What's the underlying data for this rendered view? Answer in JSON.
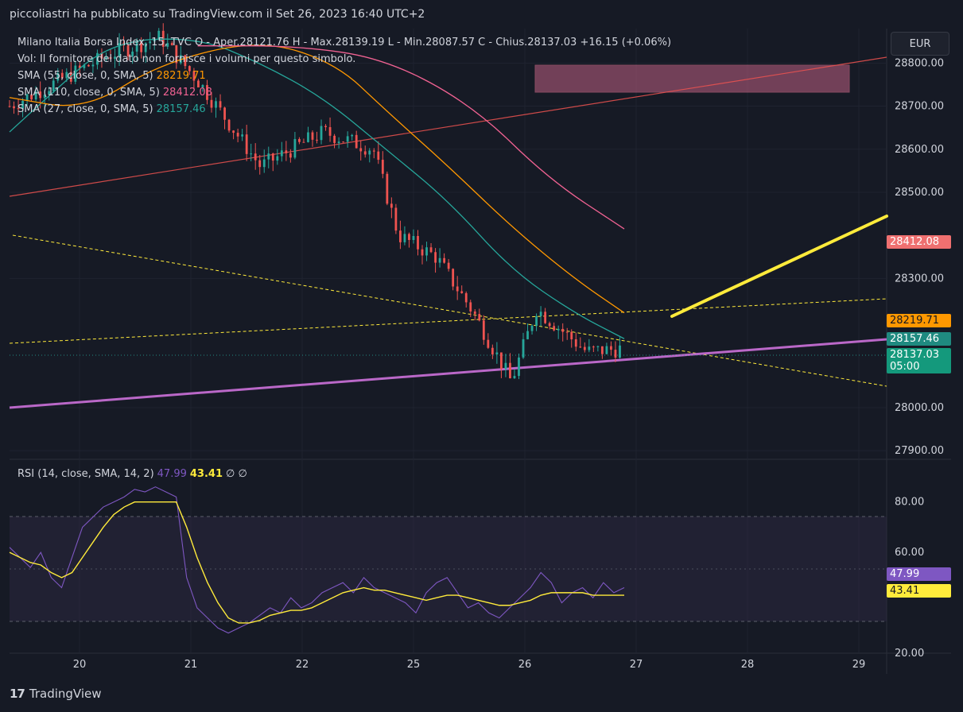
{
  "header": {
    "published": "piccoliastri ha pubblicato su TradingView.com il Set 26, 2023 16:40 UTC+2"
  },
  "currency": "EUR",
  "legend": {
    "symbol_line": "Milano Italia Borsa Index, 15, TVC  O - Aper.28121.76  H - Max.28139.19  L - Min.28087.57  C - Chius.28137.03  +16.15 (+0.06%)",
    "vol_line": "Vol: Il fornitore del dato non fornisce i volumi per questo simbolo.",
    "sma55_label": "SMA (55, close, 0, SMA, 5)",
    "sma55_value": "28219.71",
    "sma110_label": "SMA (110, close, 0, SMA, 5)",
    "sma110_value": "28412.08",
    "sma27_label": "SMA (27, close, 0, SMA, 5)",
    "sma27_value": "28157.46",
    "rsi_label": "RSI (14, close, SMA, 14, 2)",
    "rsi_value": "47.99",
    "rsi_ma_value": "43.41",
    "rsi_extra": "∅  ∅"
  },
  "colors": {
    "background": "#161a25",
    "up": "#26a69a",
    "down": "#ef5350",
    "sma55": "#ff9800",
    "sma110": "#f06292",
    "sma27": "#26a69a",
    "rsi": "#7e57c2",
    "rsi_ma": "#ffeb3b",
    "trend_purple": "#ba68c8",
    "trend_yellow": "#ffeb3b",
    "zone": "#b05a7a"
  },
  "badges": {
    "sma110": "28412.08",
    "sma55": "28219.71",
    "sma27": "28157.46",
    "price": "28137.03",
    "countdown": "05:00",
    "rsi": "47.99",
    "rsi_ma": "43.41"
  },
  "footer": {
    "brand": "TradingView",
    "logo": "17"
  },
  "chart_data": [
    {
      "type": "candlestick",
      "ylim": [
        27880,
        28880
      ],
      "y_ticks": [
        "28800.00",
        "28700.00",
        "28600.00",
        "28500.00",
        "28300.00",
        "28000.00",
        "27900.00"
      ],
      "x_ticks": [
        "20",
        "21",
        "22",
        "25",
        "26",
        "27",
        "28",
        "29"
      ],
      "series": [
        {
          "name": "SMA (27, close, 0, SMA, 5)",
          "values_path": [
            [
              0.0,
              28640
            ],
            [
              0.3,
              28720
            ],
            [
              0.8,
              28850
            ],
            [
              1.5,
              28860
            ],
            [
              2.0,
              28800
            ],
            [
              2.5,
              28720
            ],
            [
              3.0,
              28600
            ],
            [
              3.5,
              28480
            ],
            [
              4.0,
              28320
            ],
            [
              4.5,
              28220
            ],
            [
              4.9,
              28160
            ]
          ]
        },
        {
          "name": "SMA (55, close, 0, SMA, 5)",
          "values_path": [
            [
              0.0,
              28720
            ],
            [
              0.6,
              28690
            ],
            [
              1.2,
              28800
            ],
            [
              2.0,
              28855
            ],
            [
              2.6,
              28800
            ],
            [
              3.0,
              28690
            ],
            [
              3.5,
              28560
            ],
            [
              4.0,
              28420
            ],
            [
              4.5,
              28300
            ],
            [
              4.9,
              28220
            ]
          ]
        },
        {
          "name": "SMA (110, close, 0, SMA, 5)",
          "values_path": [
            [
              1.5,
              28840
            ],
            [
              2.3,
              28840
            ],
            [
              3.0,
              28810
            ],
            [
              3.7,
              28700
            ],
            [
              4.3,
              28530
            ],
            [
              4.9,
              28415
            ]
          ]
        }
      ]
    },
    {
      "type": "line",
      "ylim": [
        20,
        90
      ],
      "y_ticks": [
        "80.00",
        "60.00",
        "20.00"
      ],
      "bands": [
        30,
        70
      ],
      "series": [
        {
          "name": "RSI",
          "values": [
            62,
            58,
            54,
            60,
            50,
            46,
            58,
            70,
            74,
            78,
            80,
            82,
            85,
            84,
            86,
            84,
            82,
            50,
            38,
            34,
            30,
            28,
            30,
            32,
            35,
            38,
            36,
            42,
            38,
            40,
            44,
            46,
            48,
            44,
            50,
            46,
            44,
            42,
            40,
            36,
            44,
            48,
            50,
            44,
            38,
            40,
            36,
            34,
            38,
            42,
            46,
            52,
            48,
            40,
            44,
            46,
            42,
            48,
            44,
            46
          ]
        },
        {
          "name": "RSI MA",
          "values": [
            60,
            58,
            56,
            55,
            52,
            50,
            52,
            58,
            64,
            70,
            75,
            78,
            80,
            80,
            80,
            80,
            80,
            70,
            58,
            48,
            40,
            34,
            32,
            32,
            33,
            35,
            36,
            37,
            37,
            38,
            40,
            42,
            44,
            45,
            46,
            45,
            45,
            44,
            43,
            42,
            41,
            42,
            43,
            43,
            42,
            41,
            40,
            39,
            39,
            40,
            41,
            43,
            44,
            44,
            44,
            44,
            43,
            43,
            43,
            43
          ]
        }
      ]
    }
  ]
}
